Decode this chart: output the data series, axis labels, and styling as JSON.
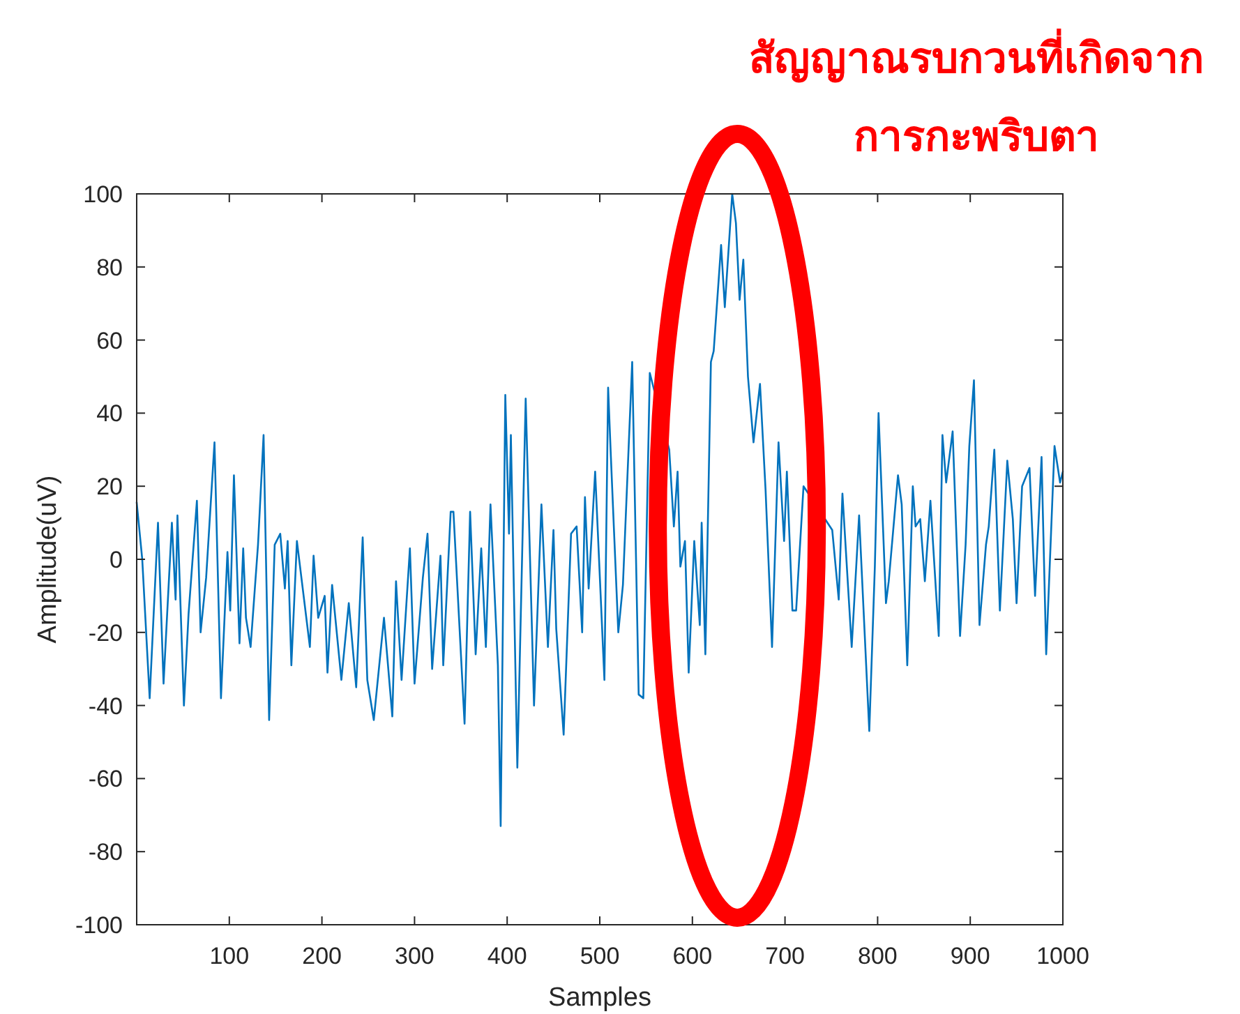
{
  "chart_data": {
    "type": "line",
    "xlabel": "Samples",
    "ylabel": "Amplitude(uV)",
    "annotations": [
      {
        "text": "สัญญาณรบกวนที่เกิดจาก\nการกะพริบตา",
        "x": 650,
        "y": 100
      }
    ],
    "xlim": [
      0,
      1000
    ],
    "xticks": [
      100,
      200,
      300,
      400,
      500,
      600,
      700,
      800,
      900,
      1000
    ],
    "ylim": [
      -100,
      100
    ],
    "yticks": [
      -100,
      -80,
      -60,
      -40,
      -20,
      0,
      20,
      40,
      60,
      80,
      100
    ],
    "grid": false,
    "marker": "none",
    "line_style": "solid",
    "series": [
      {
        "color": "#0072bd",
        "x": [
          0,
          6,
          14,
          23,
          29,
          38,
          42,
          44,
          51,
          56,
          65,
          69,
          75,
          84,
          91,
          98,
          101,
          105,
          111,
          115,
          118,
          123,
          131,
          137,
          143,
          149,
          155,
          160,
          163,
          167,
          173,
          187,
          191,
          196,
          203,
          206,
          211,
          221,
          229,
          237,
          244,
          249,
          256,
          267,
          276,
          280,
          286,
          295,
          300,
          309,
          314,
          319,
          328,
          331,
          339,
          342,
          354,
          360,
          366,
          372,
          377,
          382,
          390,
          393,
          398,
          402,
          404,
          411,
          420,
          429,
          437,
          444,
          450,
          453,
          461,
          469,
          475,
          481,
          484,
          488,
          495,
          505,
          509,
          512,
          520,
          525,
          535,
          542,
          547,
          554,
          575,
          580,
          584,
          587,
          592,
          596,
          602,
          608,
          610,
          614,
          620,
          623,
          631,
          635,
          643,
          647,
          651,
          655,
          660,
          666,
          673,
          679,
          686,
          693,
          699,
          702,
          708,
          712,
          720,
          751,
          758,
          762,
          772,
          780,
          791,
          797,
          801,
          809,
          812,
          822,
          826,
          832,
          838,
          841,
          846,
          851,
          857,
          866,
          870,
          874,
          881,
          889,
          895,
          899,
          904,
          910,
          917,
          920,
          926,
          932,
          940,
          946,
          950,
          956,
          964,
          970,
          977,
          982,
          991,
          997,
          1000
        ],
        "values": [
          15.6,
          0,
          -38,
          10,
          -34,
          10,
          -11,
          12,
          -40,
          -15,
          16,
          -20,
          -5,
          32,
          -38,
          2,
          -14,
          23,
          -23,
          3,
          -16,
          -24,
          4,
          34,
          -44,
          4,
          7,
          -8,
          5,
          -29,
          5,
          -24,
          1,
          -16,
          -10,
          -31,
          -7,
          -33,
          -12,
          -35,
          6,
          -33,
          -44,
          -16,
          -43,
          -6,
          -33,
          3,
          -34,
          -5,
          7,
          -30,
          1,
          -29,
          13,
          13,
          -45,
          13,
          -26,
          3,
          -24,
          15,
          -29,
          -73,
          45,
          7,
          34,
          -57,
          44,
          -40,
          15,
          -24,
          8,
          -19,
          -48,
          7,
          9,
          -20,
          17,
          -8,
          24,
          -33,
          47,
          28,
          -20,
          -7,
          54,
          -37,
          -38,
          51,
          30,
          9,
          24,
          -2,
          5,
          -31,
          5,
          -18,
          10,
          -26,
          54,
          57,
          86,
          69,
          100,
          92,
          71,
          82,
          50,
          32,
          48,
          19,
          -24,
          32,
          5,
          24,
          -14,
          -14,
          20,
          8,
          -11,
          18,
          -24,
          12,
          -47,
          -2,
          40,
          -12,
          -6,
          23,
          15,
          -29,
          20,
          9,
          11,
          -6,
          16,
          -21,
          34,
          21,
          35,
          -21,
          4,
          31,
          49,
          -18,
          4,
          9,
          30,
          -14,
          27,
          11,
          -12,
          20,
          25,
          -10,
          28,
          -26,
          31,
          21,
          24
        ]
      }
    ]
  }
}
